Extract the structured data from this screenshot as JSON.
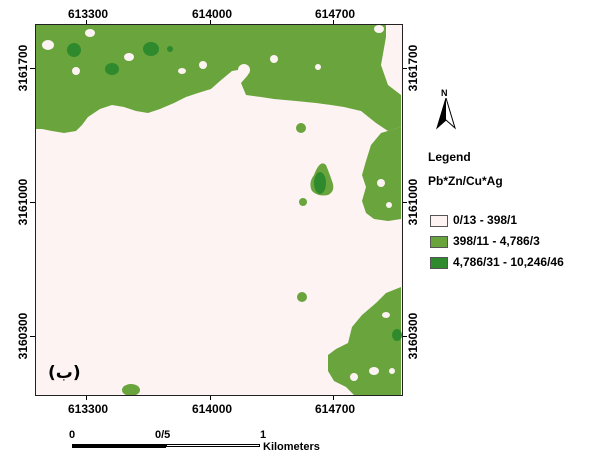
{
  "axes": {
    "x_labels": [
      "613300",
      "614000",
      "614700"
    ],
    "y_labels": [
      "3161700",
      "3161000",
      "3160300"
    ]
  },
  "map": {
    "panel_label": "(ب)",
    "colors": {
      "low": "#fdf3f3",
      "mid": "#6aa43c",
      "high": "#2f8a2d"
    }
  },
  "north_arrow": {
    "letter": "N",
    "icon": "north-arrow-icon"
  },
  "legend": {
    "title": "Legend",
    "subtitle": "Pb*Zn/Cu*Ag",
    "classes": [
      {
        "label": "0/13 - 398/1",
        "color": "#fdf3f3"
      },
      {
        "label": "398/11 - 4,786/3",
        "color": "#6aa43c"
      },
      {
        "label": "4,786/31 - 10,246/46",
        "color": "#2f8a2d"
      }
    ]
  },
  "scale": {
    "labels": [
      "0",
      "0/5",
      "1"
    ],
    "unit": "Kilometers"
  }
}
